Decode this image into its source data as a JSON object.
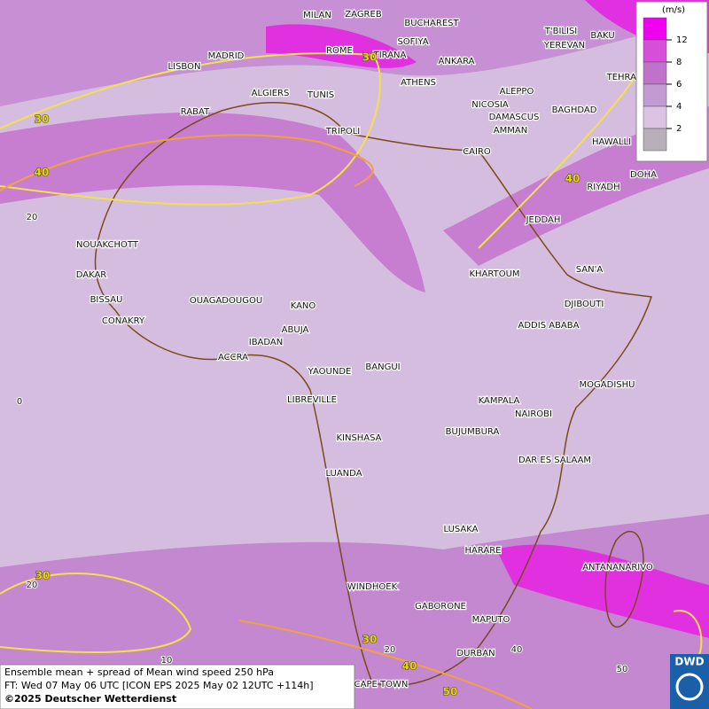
{
  "map": {
    "cities": [
      "MILAN",
      "ZAGREB",
      "BUCHAREST",
      "T'BILISI",
      "BAKU",
      "MADRID",
      "ROME",
      "SOFIYA",
      "YEREVAN",
      "TIRANA",
      "LISBON",
      "ANKARA",
      "ATHENS",
      "TEHRAN",
      "ALGIERS",
      "TUNIS",
      "ALEPPO",
      "RABAT",
      "NICOSIA",
      "BAGHDAD",
      "DAMASCUS",
      "TRIPOLI",
      "AMMAN",
      "HAWALLI",
      "CAIRO",
      "DOHA",
      "RIYADH",
      "JEDDAH",
      "NOUAKCHOTT",
      "SAN'A",
      "DAKAR",
      "KHARTOUM",
      "BISSAU",
      "OUAGADOUGOU",
      "DJIBOUTI",
      "KANO",
      "CONAKRY",
      "ABUJA",
      "ADDIS ABABA",
      "IBADAN",
      "ACCRA",
      "BANGUI",
      "YAOUNDE",
      "MOGADISHU",
      "LIBREVILLE",
      "KAMPALA",
      "NAIROBI",
      "BUJUMBURA",
      "KINSHASA",
      "DAR ES SALAAM",
      "LUANDA",
      "LUSAKA",
      "HARARE",
      "ANTANANARIVO",
      "WINDHOEK",
      "GABORONE",
      "MAPUTO",
      "DURBAN",
      "CAPE TOWN"
    ],
    "contour_labels": [
      30,
      30,
      40,
      40,
      30,
      30,
      40,
      50
    ],
    "lat_labels": [
      20,
      0,
      20
    ],
    "lon_labels": [
      10,
      20,
      40,
      50
    ]
  },
  "legend": {
    "unit": "(m/s)",
    "ticks": [
      12,
      8,
      6,
      4,
      2
    ],
    "colors": [
      "#f000f0",
      "#d74ed8",
      "#bf72c9",
      "#c39bd3",
      "#dcc3e3",
      "#b8b0b8"
    ]
  },
  "footer": {
    "lines": [
      "Ensemble mean + spread of Mean wind speed 250 hPa",
      "FT: Wed 07 May 06 UTC [ICON EPS 2025 May 02 12UTC +114h]",
      "©2025 Deutscher Wetterdienst"
    ]
  },
  "logo": "DWD"
}
